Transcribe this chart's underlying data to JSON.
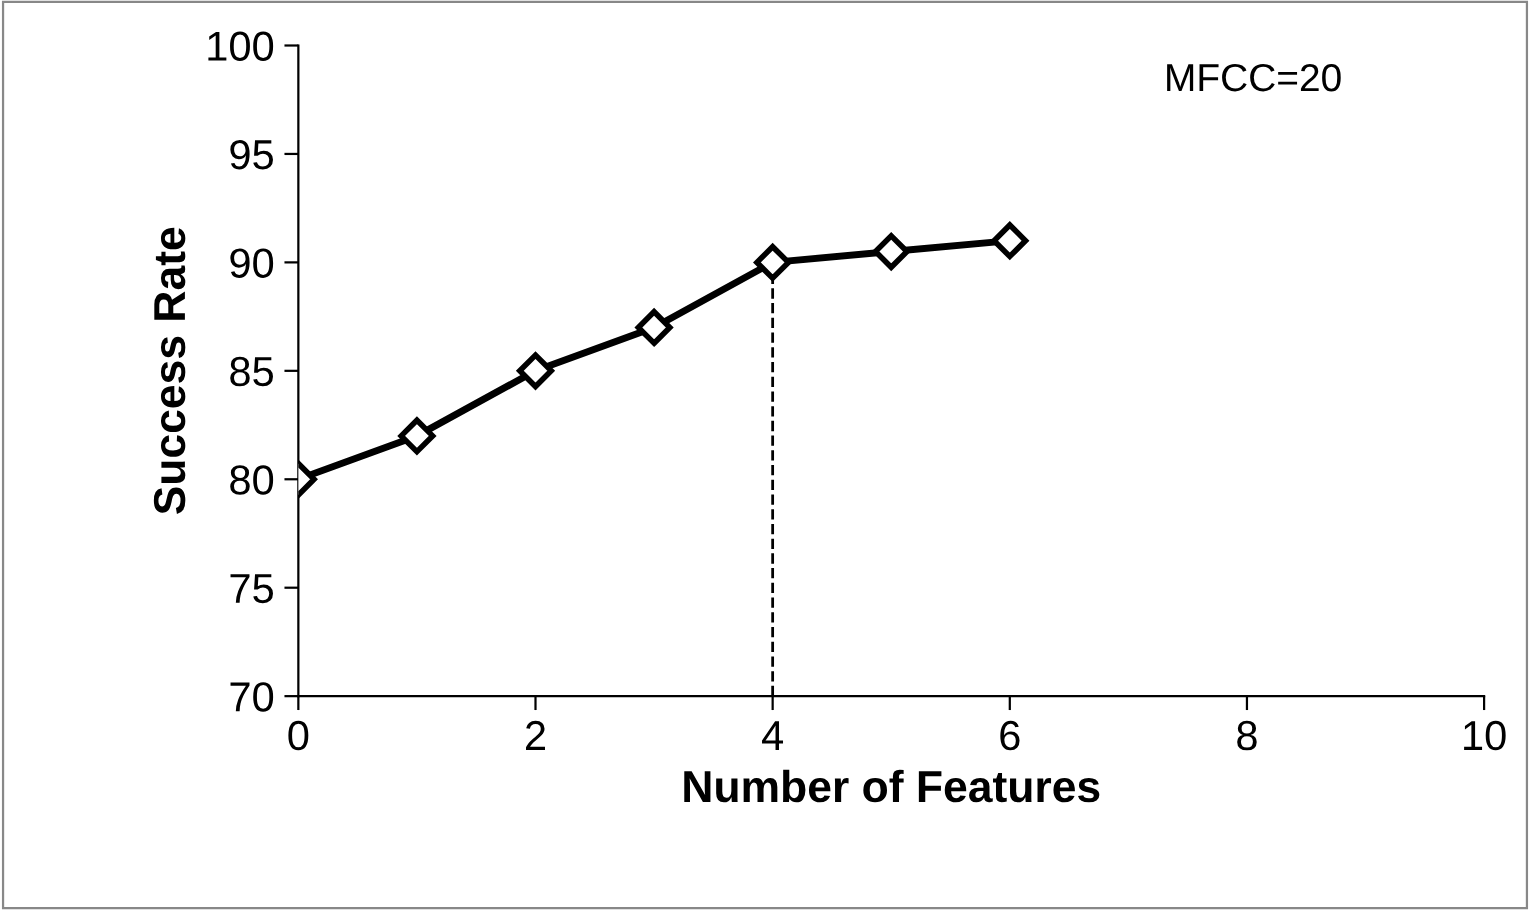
{
  "chart_data": {
    "type": "line",
    "xlabel": "Number of Features",
    "ylabel": "Success Rate",
    "x": [
      0,
      1,
      2,
      3,
      4,
      5,
      6
    ],
    "series": [
      {
        "color": "#000000",
        "values": [
          80,
          82,
          85,
          87,
          90,
          90.5,
          91
        ]
      }
    ],
    "xlim": [
      0,
      10
    ],
    "xticks": [
      0,
      2,
      4,
      6,
      8,
      10
    ],
    "ylim": [
      70,
      100
    ],
    "yticks": [
      70,
      75,
      80,
      85,
      90,
      95,
      100
    ],
    "marker": "diamond",
    "line_style": "solid",
    "grid": false,
    "legend": false,
    "ref_lines": [
      {
        "axis": "x",
        "value": 4,
        "label": null,
        "color": "#000000",
        "line_style": "dashed"
      }
    ],
    "annotations": [
      "MFCC=20"
    ]
  }
}
